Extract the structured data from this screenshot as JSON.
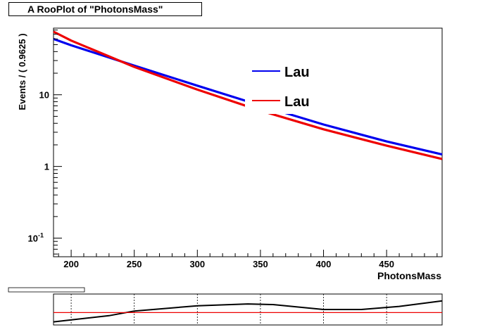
{
  "chart_data": [
    {
      "type": "line",
      "title": "A RooPlot of \"PhotonsMass\"",
      "xlabel": "PhotonsMass",
      "ylabel": "Events / ( 0.9625 )",
      "xlim": [
        186,
        494
      ],
      "ylim": [
        0.055,
        85
      ],
      "yscale": "log",
      "x_ticks": [
        200,
        250,
        300,
        350,
        400,
        450
      ],
      "y_ticks": [
        {
          "value": 0.1,
          "base": "10",
          "exp": "-1"
        },
        {
          "value": 1,
          "base": "1",
          "exp": ""
        },
        {
          "value": 10,
          "base": "10",
          "exp": ""
        }
      ],
      "grid": false,
      "legend_position": "top-right",
      "series": [
        {
          "name": "Lau",
          "color": "#0000ee",
          "x": [
            186,
            200,
            250,
            300,
            350,
            400,
            450,
            494
          ],
          "y": [
            60,
            49,
            25.5,
            13.4,
            7.1,
            3.85,
            2.23,
            1.47
          ]
        },
        {
          "name": "Lau",
          "color": "#ee0000",
          "x": [
            186,
            200,
            250,
            300,
            350,
            400,
            450,
            494
          ],
          "y": [
            76,
            57,
            24.5,
            11.8,
            6.0,
            3.3,
            1.95,
            1.27
          ]
        }
      ]
    },
    {
      "type": "line",
      "xlim": [
        186,
        494
      ],
      "ylim": [
        0,
        1
      ],
      "x_ticks": [
        200,
        250,
        300,
        350,
        400,
        450
      ],
      "series": [
        {
          "color": "#000000",
          "x": [
            186,
            230,
            250,
            300,
            340,
            360,
            400,
            430,
            460,
            494
          ],
          "y": [
            0.1,
            0.3,
            0.45,
            0.62,
            0.68,
            0.66,
            0.5,
            0.5,
            0.6,
            0.78
          ]
        },
        {
          "color": "#ee0000",
          "x": [
            186,
            494
          ],
          "y": [
            0.4,
            0.4
          ]
        }
      ]
    }
  ]
}
